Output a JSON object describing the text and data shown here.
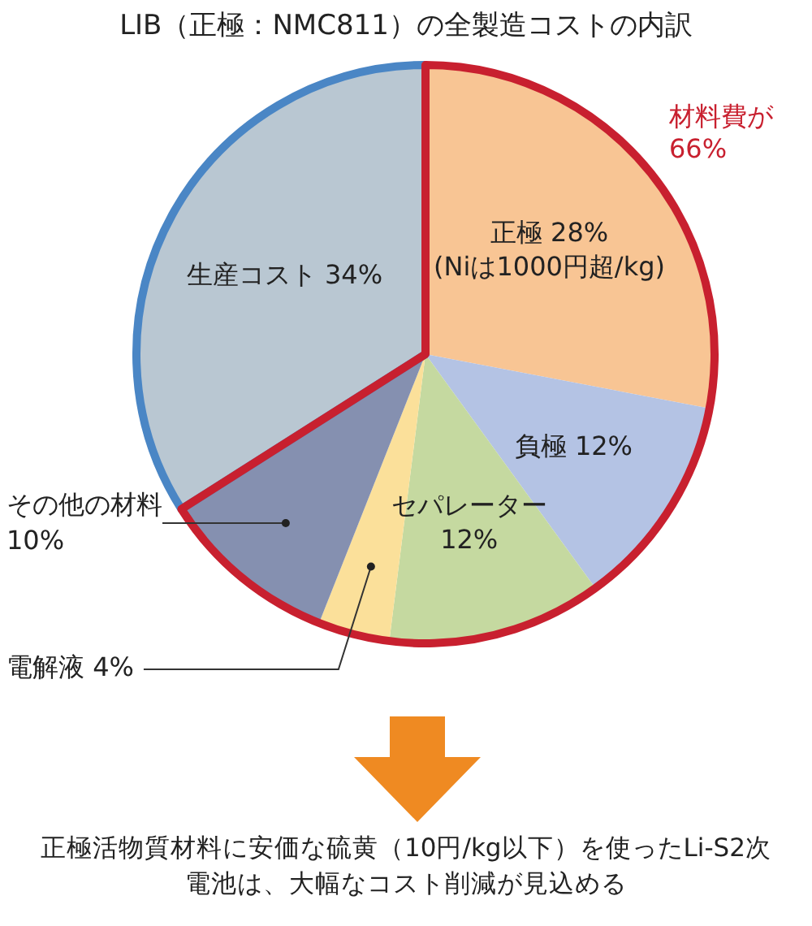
{
  "chart_data": {
    "type": "pie",
    "title": "LIB（正極：NMC811）の全製造コストの内訳",
    "categories": [
      "正極",
      "負極",
      "セパレーター",
      "電解液",
      "その他の材料",
      "生産コスト"
    ],
    "values": [
      28,
      12,
      12,
      4,
      10,
      34
    ],
    "value_labels": [
      "28%",
      "12%",
      "12%",
      "4%",
      "10%",
      "34%"
    ],
    "colors": [
      "#f8c594",
      "#b4c3e4",
      "#c5d9a0",
      "#fbe09a",
      "#8590b0",
      "#b9c7d2"
    ],
    "legend": false,
    "annotations": [
      "(Niは1000円超/kg)",
      "材料費が66%",
      "正極活物質材料に安価な硫黄（10円/kg以下）を使ったLi-S2次電池は、大幅なコスト削減が見込める"
    ]
  }
}
